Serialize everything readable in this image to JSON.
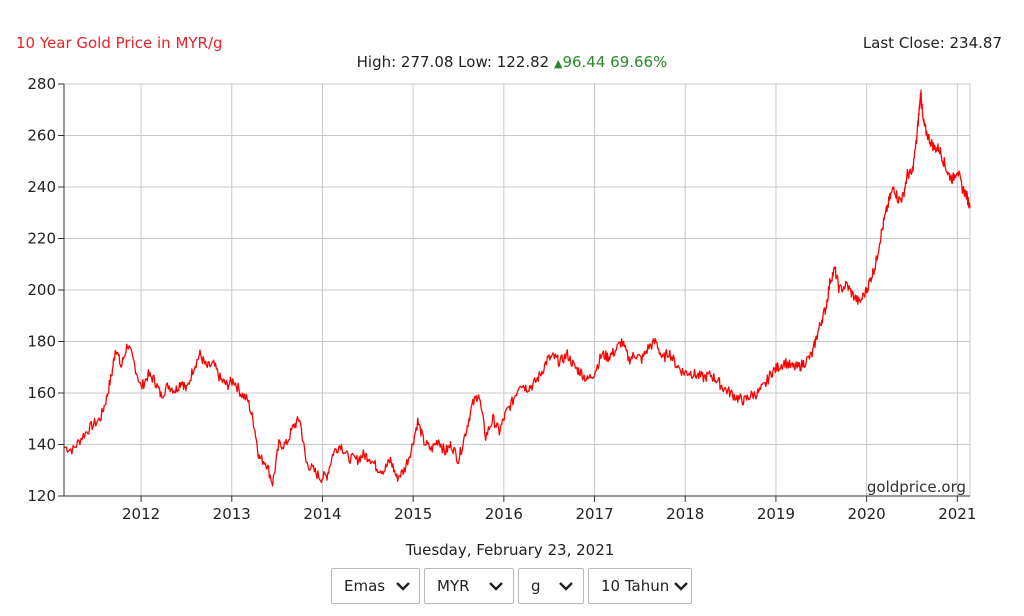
{
  "header": {
    "title": "10 Year Gold Price in MYR/g",
    "last_close_label": "Last Close: 234.87",
    "high_low": "High: 277.08 Low: 122.82",
    "change": "96.44 69.66%",
    "change_symbol": "▲"
  },
  "watermark": "goldprice.org",
  "date_label": "Tuesday, February 23, 2021",
  "controls": {
    "metal": "Emas",
    "currency": "MYR",
    "unit": "g",
    "range": "10 Tahun"
  },
  "colors": {
    "line": "#ff0000",
    "title": "#e8232a",
    "change": "#2a8a2a",
    "grid": "#c8c8c8"
  },
  "chart_data": {
    "type": "line",
    "title": "10 Year Gold Price in MYR/g",
    "xlabel": "",
    "ylabel": "",
    "x_ticks": [
      2012,
      2013,
      2014,
      2015,
      2016,
      2017,
      2018,
      2019,
      2020,
      2021
    ],
    "y_ticks": [
      120,
      140,
      160,
      180,
      200,
      220,
      240,
      260,
      280
    ],
    "xlim": [
      2011.15,
      2021.14
    ],
    "ylim": [
      120,
      280
    ],
    "grid": true,
    "series": [
      {
        "name": "",
        "x": [
          2011.15,
          2011.25,
          2011.35,
          2011.45,
          2011.55,
          2011.62,
          2011.68,
          2011.72,
          2011.78,
          2011.85,
          2011.92,
          2012.0,
          2012.08,
          2012.15,
          2012.22,
          2012.3,
          2012.38,
          2012.45,
          2012.5,
          2012.58,
          2012.65,
          2012.72,
          2012.8,
          2012.88,
          2012.95,
          2013.02,
          2013.1,
          2013.18,
          2013.25,
          2013.3,
          2013.38,
          2013.45,
          2013.52,
          2013.6,
          2013.68,
          2013.75,
          2013.82,
          2013.9,
          2013.98,
          2014.05,
          2014.12,
          2014.2,
          2014.28,
          2014.38,
          2014.45,
          2014.52,
          2014.6,
          2014.68,
          2014.75,
          2014.82,
          2014.9,
          2014.98,
          2015.05,
          2015.12,
          2015.2,
          2015.28,
          2015.35,
          2015.42,
          2015.5,
          2015.58,
          2015.65,
          2015.72,
          2015.8,
          2015.88,
          2015.95,
          2016.02,
          2016.1,
          2016.18,
          2016.25,
          2016.32,
          2016.4,
          2016.48,
          2016.55,
          2016.62,
          2016.7,
          2016.78,
          2016.85,
          2016.92,
          2017.0,
          2017.08,
          2017.15,
          2017.22,
          2017.3,
          2017.38,
          2017.45,
          2017.52,
          2017.6,
          2017.68,
          2017.75,
          2017.82,
          2017.9,
          2017.98,
          2018.05,
          2018.12,
          2018.2,
          2018.28,
          2018.35,
          2018.42,
          2018.5,
          2018.58,
          2018.65,
          2018.72,
          2018.8,
          2018.88,
          2018.95,
          2019.02,
          2019.1,
          2019.18,
          2019.25,
          2019.32,
          2019.4,
          2019.45,
          2019.5,
          2019.55,
          2019.6,
          2019.65,
          2019.7,
          2019.78,
          2019.85,
          2019.92,
          2020.0,
          2020.05,
          2020.1,
          2020.15,
          2020.2,
          2020.25,
          2020.3,
          2020.35,
          2020.4,
          2020.45,
          2020.5,
          2020.55,
          2020.58,
          2020.6,
          2020.62,
          2020.65,
          2020.7,
          2020.75,
          2020.8,
          2020.85,
          2020.9,
          2020.95,
          2021.0,
          2021.05,
          2021.1,
          2021.14
        ],
        "values": [
          139,
          138,
          143,
          147,
          150,
          158,
          168,
          178,
          170,
          179,
          172,
          162,
          167,
          165,
          159,
          163,
          161,
          165,
          161,
          170,
          175,
          170,
          171,
          165,
          163,
          165,
          160,
          157,
          147,
          135,
          133,
          125,
          140,
          140,
          147,
          150,
          133,
          130,
          127,
          128,
          137,
          140,
          135,
          134,
          136,
          135,
          131,
          130,
          134,
          127,
          130,
          138,
          149,
          141,
          138,
          142,
          137,
          140,
          134,
          145,
          155,
          160,
          143,
          150,
          145,
          152,
          157,
          164,
          162,
          163,
          167,
          173,
          174,
          172,
          175,
          170,
          168,
          165,
          168,
          175,
          174,
          176,
          180,
          173,
          175,
          173,
          178,
          180,
          173,
          176,
          171,
          168,
          168,
          167,
          166,
          167,
          165,
          162,
          160,
          158,
          157,
          159,
          160,
          163,
          168,
          170,
          172,
          170,
          170,
          172,
          175,
          182,
          188,
          193,
          204,
          208,
          200,
          202,
          198,
          195,
          200,
          205,
          210,
          220,
          228,
          235,
          240,
          235,
          236,
          245,
          245,
          258,
          270,
          277,
          266,
          262,
          258,
          255,
          255,
          250,
          245,
          243,
          247,
          240,
          237,
          232
        ]
      }
    ]
  }
}
